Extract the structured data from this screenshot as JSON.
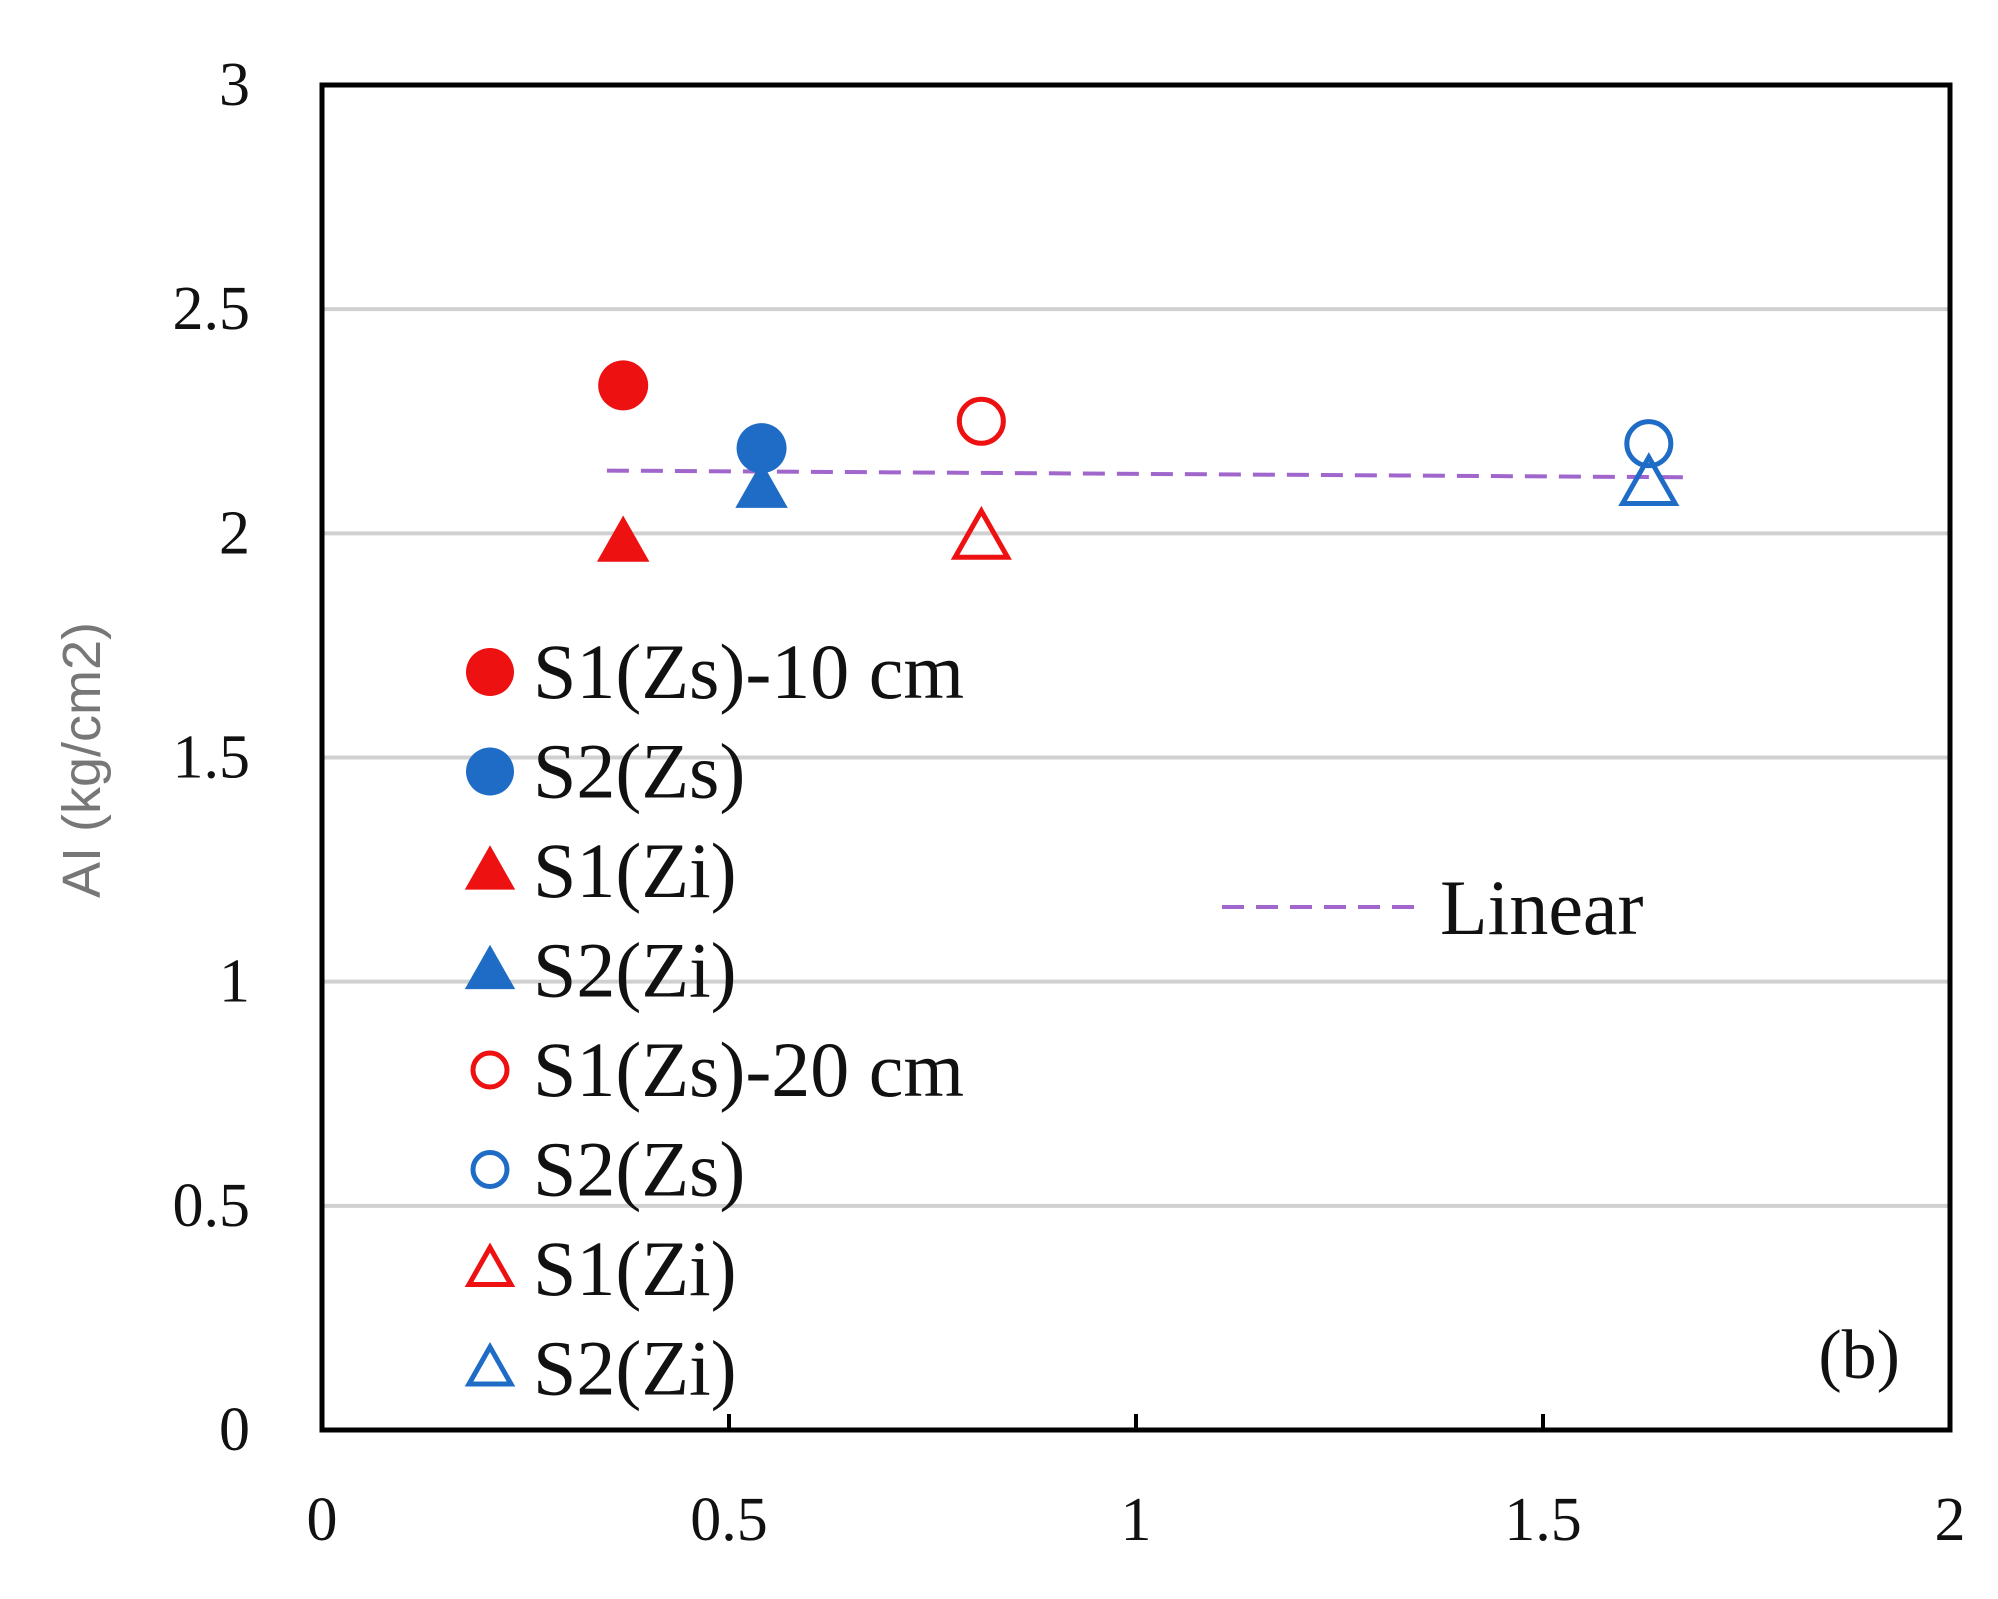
{
  "chart_data": {
    "type": "scatter",
    "title": "",
    "xlabel": "",
    "ylabel": "AI (kg/cm2)",
    "xlim": [
      0,
      2
    ],
    "ylim": [
      0,
      3
    ],
    "x_ticks": [
      "0",
      "0.5",
      "1",
      "1.5",
      "2"
    ],
    "y_ticks": [
      "0",
      "0.5",
      "1",
      "1.5",
      "2",
      "2.5",
      "3"
    ],
    "grid": "horizontal",
    "panel_label": "(b)",
    "series": [
      {
        "name": "S1(Zs)-10 cm",
        "color": "#ee1111",
        "marker": "circle",
        "filled": true,
        "points": [
          {
            "x": 0.37,
            "y": 2.33
          }
        ]
      },
      {
        "name": "S2(Zs)",
        "color": "#1f6cc7",
        "marker": "circle",
        "filled": true,
        "points": [
          {
            "x": 0.54,
            "y": 2.19
          }
        ]
      },
      {
        "name": "S1(Zi)",
        "color": "#ee1111",
        "marker": "triangle",
        "filled": true,
        "points": [
          {
            "x": 0.37,
            "y": 1.98
          }
        ]
      },
      {
        "name": "S2(Zi)",
        "color": "#1f6cc7",
        "marker": "triangle",
        "filled": true,
        "points": [
          {
            "x": 0.54,
            "y": 2.1
          }
        ]
      },
      {
        "name": "S1(Zs)-20 cm",
        "color": "#ee1111",
        "marker": "circle",
        "filled": false,
        "points": [
          {
            "x": 0.81,
            "y": 2.25
          }
        ]
      },
      {
        "name": "S2(Zs)",
        "color": "#1f6cc7",
        "marker": "circle",
        "filled": false,
        "points": [
          {
            "x": 1.63,
            "y": 2.2
          }
        ]
      },
      {
        "name": "S1(Zi)",
        "color": "#ee1111",
        "marker": "triangle",
        "filled": false,
        "points": [
          {
            "x": 0.81,
            "y": 1.99
          }
        ]
      },
      {
        "name": "S2(Zi)",
        "color": "#1f6cc7",
        "marker": "triangle",
        "filled": false,
        "points": [
          {
            "x": 1.63,
            "y": 2.11
          }
        ]
      }
    ],
    "trendline": {
      "name": "Linear",
      "color": "#a066cc",
      "style": "dashed",
      "x": [
        0.35,
        1.68
      ],
      "y": [
        2.14,
        2.125
      ]
    }
  }
}
